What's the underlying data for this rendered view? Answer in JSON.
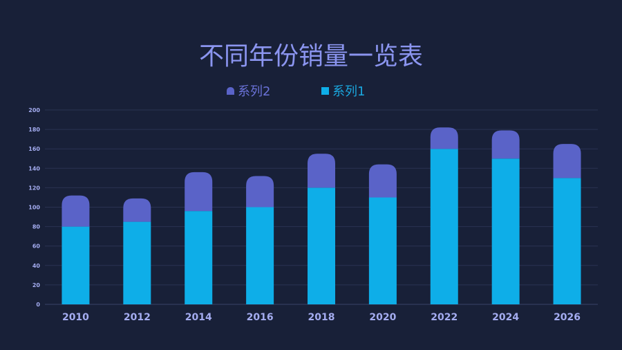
{
  "chart_data": {
    "type": "bar",
    "stacked": true,
    "title": "不同年份销量一览表",
    "categories": [
      "2010",
      "2012",
      "2014",
      "2016",
      "2018",
      "2020",
      "2022",
      "2024",
      "2026"
    ],
    "series": [
      {
        "name": "系列1",
        "color": "#0eaee8",
        "values": [
          80,
          85,
          96,
          100,
          120,
          110,
          160,
          150,
          130
        ]
      },
      {
        "name": "系列2",
        "color": "#5a63c8",
        "values": [
          32,
          24,
          40,
          32,
          35,
          34,
          22,
          29,
          35
        ]
      }
    ],
    "ylim": [
      0,
      200
    ],
    "yticks": [
      "0",
      "20",
      "40",
      "60",
      "80",
      "100",
      "120",
      "140",
      "160",
      "180",
      "200"
    ],
    "grid": true,
    "legend": "top-center",
    "legend_order": [
      "系列2",
      "系列1"
    ]
  }
}
